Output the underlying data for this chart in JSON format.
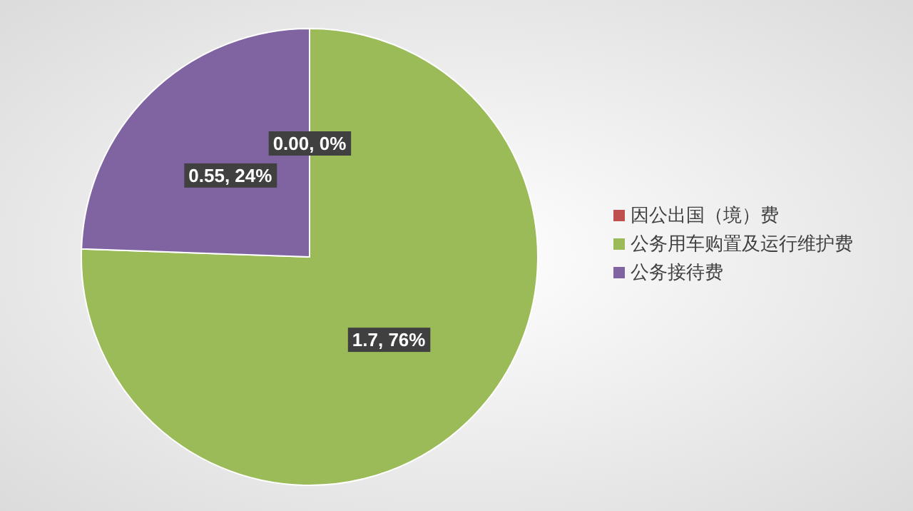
{
  "chart_data": {
    "type": "pie",
    "categories": [
      "因公出国（境）费",
      "公务用车购置及运行维护费",
      "公务接待费"
    ],
    "values": [
      0.0,
      1.7,
      0.55
    ],
    "value_labels": [
      "0.00, 0%",
      "1.7, 76%",
      "0.55, 24%"
    ],
    "colors": [
      "#c0504d",
      "#9bbb59",
      "#8064a2"
    ],
    "legend": "right"
  }
}
